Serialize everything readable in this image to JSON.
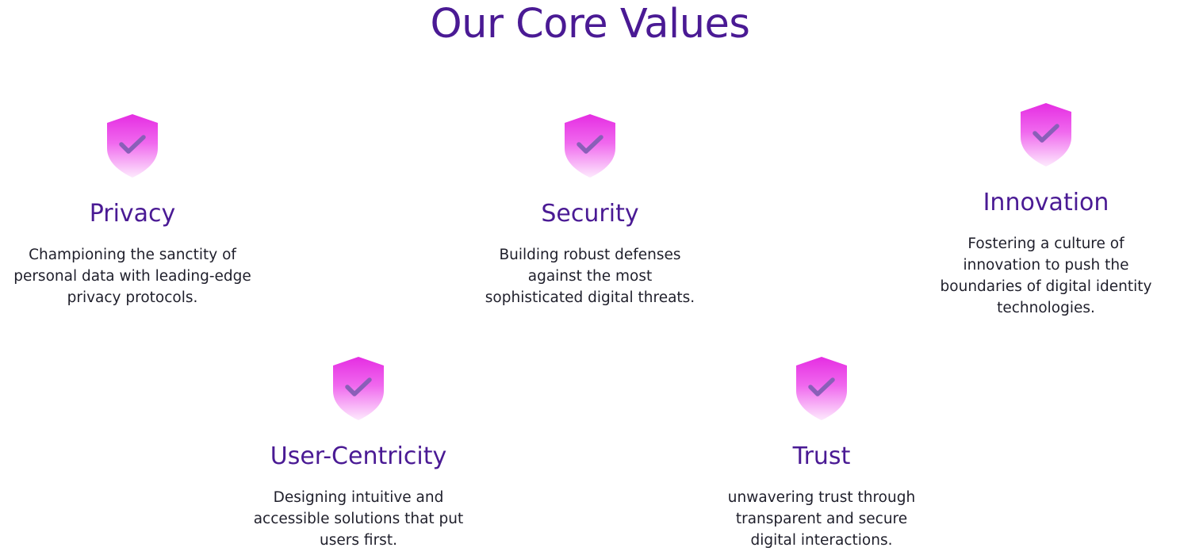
{
  "page": {
    "title": "Our Core Values"
  },
  "colors": {
    "title": "#4a1a94",
    "body_text": "#1f1f2b",
    "shield_top": "#e62fe3",
    "shield_bottom": "#fbe0fa",
    "check": "#8a5fb8"
  },
  "values": [
    {
      "icon": "shield-check-icon",
      "title": "Privacy",
      "description": "Championing the sanctity of personal data with leading-edge privacy protocols."
    },
    {
      "icon": "shield-check-icon",
      "title": "Security",
      "description": "Building robust defenses against the most sophisticated digital threats."
    },
    {
      "icon": "shield-check-icon",
      "title": "Innovation",
      "description": "Fostering a culture of innovation to push the boundaries of digital identity technologies."
    },
    {
      "icon": "shield-check-icon",
      "title": "User-Centricity",
      "description": "Designing intuitive and accessible solutions that put users first."
    },
    {
      "icon": "shield-check-icon",
      "title": "Trust",
      "description": "unwavering trust through transparent and secure digital interactions."
    }
  ]
}
